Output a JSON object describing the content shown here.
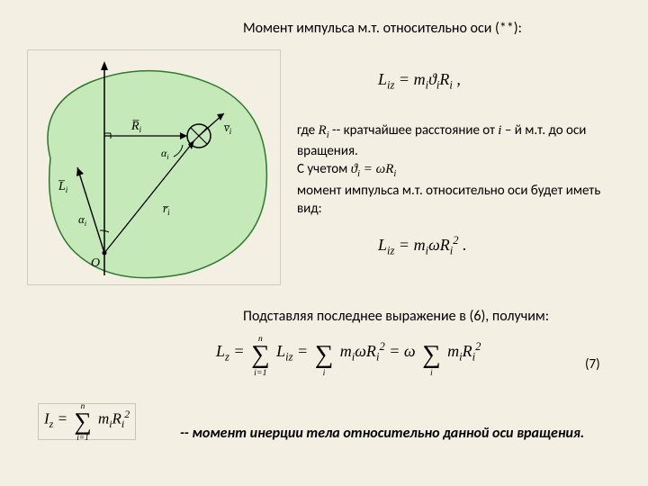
{
  "title": "Момент импульса  м.т. относительно оси (**):",
  "eq1": "L<sub>iz</sub> = m<sub>i</sub>ϑ<sub>i</sub>R<sub>i</sub>  ,",
  "txt1_a": "где ",
  "txt1_Ri": "R<sub>i</sub>",
  "txt1_b": "  -- кратчайшее расстояние от  ",
  "txt1_i": "i",
  "txt1_c": " – й м.т. до оси вращения.",
  "txt1_d": "С учетом   ",
  "txt1_eq": "ϑ<sub>i</sub> = ωR<sub>i</sub>",
  "txt1_e": "момент импульса  м.т. относительно оси будет иметь вид:",
  "eq2": "L<sub>iz</sub> = m<sub>i</sub>ωR<sub>i</sub><sup>2</sup>  .",
  "txt2": "Подставляя последнее выражение в (6), получим:",
  "eqnum": "(7)",
  "txt3": "-- момент инерции тела относительно данной оси вращения.",
  "diagram": {
    "blob_fill": "#c5e9b8",
    "blob_stroke": "#1a5d1a",
    "line_stroke": "#000000"
  }
}
